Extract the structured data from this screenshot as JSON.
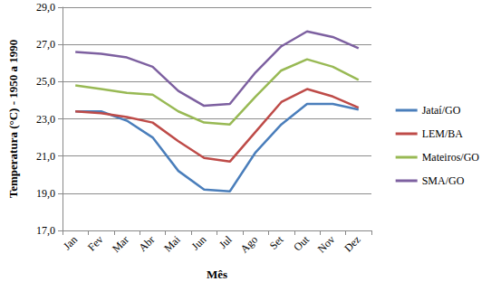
{
  "chart_data": {
    "type": "line",
    "x_label": "Mês",
    "y_label": "Temperatura (°C) - 1950 a 1990",
    "categories": [
      "Jan",
      "Fev",
      "Mar",
      "Abr",
      "Mai",
      "Jun",
      "Jul",
      "Ago",
      "Set",
      "Out",
      "Nov",
      "Dez"
    ],
    "series": [
      {
        "name": "Jataí/GO",
        "color": "#4a7ebb",
        "values": [
          23.4,
          23.4,
          22.9,
          22.0,
          20.2,
          19.2,
          19.1,
          21.2,
          22.7,
          23.8,
          23.8,
          23.5
        ]
      },
      {
        "name": "LEM/BA",
        "color": "#be4b48",
        "values": [
          23.4,
          23.3,
          23.1,
          22.8,
          21.8,
          20.9,
          20.7,
          22.3,
          23.9,
          24.6,
          24.2,
          23.6
        ]
      },
      {
        "name": "Mateiros/GO",
        "color": "#98b954",
        "values": [
          24.8,
          24.6,
          24.4,
          24.3,
          23.4,
          22.8,
          22.7,
          24.2,
          25.6,
          26.2,
          25.8,
          25.1
        ]
      },
      {
        "name": "SMA/GO",
        "color": "#7d60a0",
        "values": [
          26.6,
          26.5,
          26.3,
          25.8,
          24.5,
          23.7,
          23.8,
          25.5,
          26.9,
          27.7,
          27.4,
          26.8
        ]
      }
    ],
    "ylim": [
      17,
      29
    ],
    "yticks": [
      {
        "value": 17,
        "label": "17,0"
      },
      {
        "value": 19,
        "label": "19,0"
      },
      {
        "value": 21,
        "label": "21,0"
      },
      {
        "value": 23,
        "label": "23,0"
      },
      {
        "value": 25,
        "label": "25,0"
      },
      {
        "value": 27,
        "label": "27,0"
      },
      {
        "value": 29,
        "label": "29,0"
      }
    ],
    "grid": true,
    "legend": "right",
    "marker": "none",
    "line_style": "solid"
  }
}
